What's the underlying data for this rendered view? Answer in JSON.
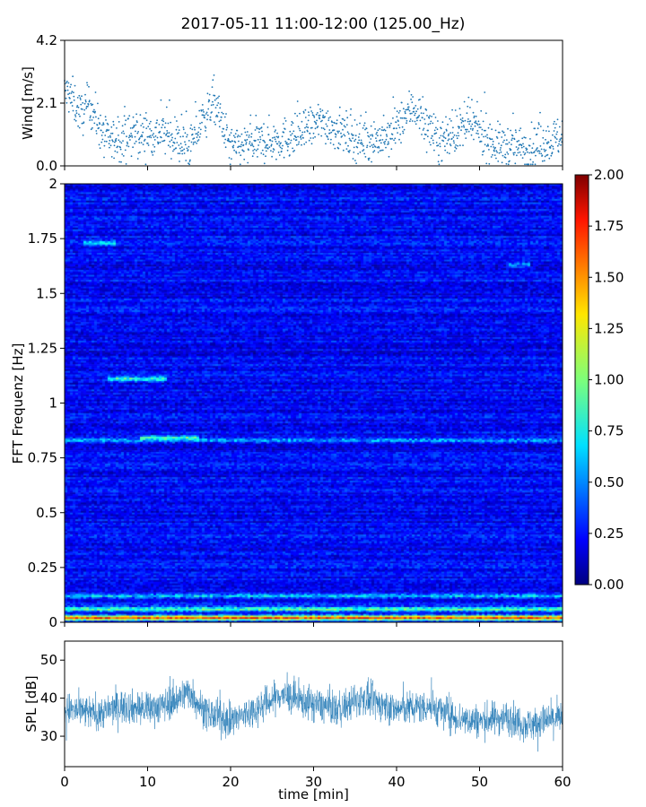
{
  "title": "2017-05-11 11:00-12:00 (125.00_Hz)",
  "chart_data": [
    {
      "type": "scatter",
      "name": "wind",
      "ylabel": "Wind [m/s]",
      "xlim": [
        0,
        60
      ],
      "ylim": [
        0,
        4.2
      ],
      "yticks": [
        "0.0",
        "2.1",
        "4.2"
      ],
      "color": "#1f77b4",
      "points_summary": [
        {
          "x": 0,
          "y": 2.5
        },
        {
          "x": 1,
          "y": 2.2
        },
        {
          "x": 2,
          "y": 1.7
        },
        {
          "x": 3,
          "y": 2.1
        },
        {
          "x": 5,
          "y": 0.8
        },
        {
          "x": 8,
          "y": 1.0
        },
        {
          "x": 12,
          "y": 1.1
        },
        {
          "x": 15,
          "y": 0.6
        },
        {
          "x": 18,
          "y": 2.2
        },
        {
          "x": 20,
          "y": 0.6
        },
        {
          "x": 24,
          "y": 0.8
        },
        {
          "x": 28,
          "y": 1.0
        },
        {
          "x": 31,
          "y": 1.5
        },
        {
          "x": 35,
          "y": 0.9
        },
        {
          "x": 39,
          "y": 0.9
        },
        {
          "x": 42,
          "y": 2.0
        },
        {
          "x": 45,
          "y": 0.8
        },
        {
          "x": 49,
          "y": 1.4
        },
        {
          "x": 52,
          "y": 0.7
        },
        {
          "x": 56,
          "y": 0.6
        },
        {
          "x": 60,
          "y": 1.0
        }
      ]
    },
    {
      "type": "heatmap",
      "name": "spectrogram",
      "ylabel": "FFT Frequenz [Hz]",
      "xlim": [
        0,
        60
      ],
      "ylim": [
        0,
        2
      ],
      "yticks": [
        "0",
        "0.25",
        "0.5",
        "0.75",
        "1",
        "1.25",
        "1.5",
        "1.75",
        "2"
      ],
      "colormap": "jet",
      "clim": [
        0,
        2
      ],
      "colorbar_ticks": [
        "0.00",
        "0.25",
        "0.50",
        "0.75",
        "1.00",
        "1.25",
        "1.50",
        "1.75",
        "2.00"
      ],
      "background_level": 0.25,
      "bright_bands": [
        {
          "f": 0.02,
          "t0": 0,
          "t1": 60,
          "level": 1.7
        },
        {
          "f": 0.06,
          "t0": 0,
          "t1": 60,
          "level": 1.0
        },
        {
          "f": 0.12,
          "t0": 0,
          "t1": 60,
          "level": 0.7
        },
        {
          "f": 0.83,
          "t0": 0,
          "t1": 60,
          "level": 0.65
        },
        {
          "f": 0.84,
          "t0": 9,
          "t1": 16,
          "level": 1.0
        },
        {
          "f": 1.11,
          "t0": 5,
          "t1": 12,
          "level": 0.9
        },
        {
          "f": 1.73,
          "t0": 2,
          "t1": 6,
          "level": 0.8
        },
        {
          "f": 1.63,
          "t0": 53,
          "t1": 56,
          "level": 0.6
        }
      ]
    },
    {
      "type": "line",
      "name": "spl",
      "xlabel": "time [min]",
      "ylabel": "SPL [dB]",
      "xlim": [
        0,
        60
      ],
      "ylim": [
        22,
        55
      ],
      "xticks": [
        "0",
        "10",
        "20",
        "30",
        "40",
        "50",
        "60"
      ],
      "yticks": [
        "30",
        "40",
        "50"
      ],
      "color": "#1f77b4",
      "trend": [
        {
          "x": 0,
          "y": 37
        },
        {
          "x": 4,
          "y": 36
        },
        {
          "x": 7,
          "y": 38
        },
        {
          "x": 10,
          "y": 37
        },
        {
          "x": 13,
          "y": 39
        },
        {
          "x": 15,
          "y": 42
        },
        {
          "x": 17,
          "y": 36
        },
        {
          "x": 20,
          "y": 34
        },
        {
          "x": 23,
          "y": 37
        },
        {
          "x": 26,
          "y": 41
        },
        {
          "x": 29,
          "y": 39
        },
        {
          "x": 33,
          "y": 37
        },
        {
          "x": 36,
          "y": 40
        },
        {
          "x": 40,
          "y": 37
        },
        {
          "x": 44,
          "y": 38
        },
        {
          "x": 47,
          "y": 35
        },
        {
          "x": 50,
          "y": 34
        },
        {
          "x": 53,
          "y": 35
        },
        {
          "x": 56,
          "y": 33
        },
        {
          "x": 60,
          "y": 35
        }
      ]
    }
  ]
}
